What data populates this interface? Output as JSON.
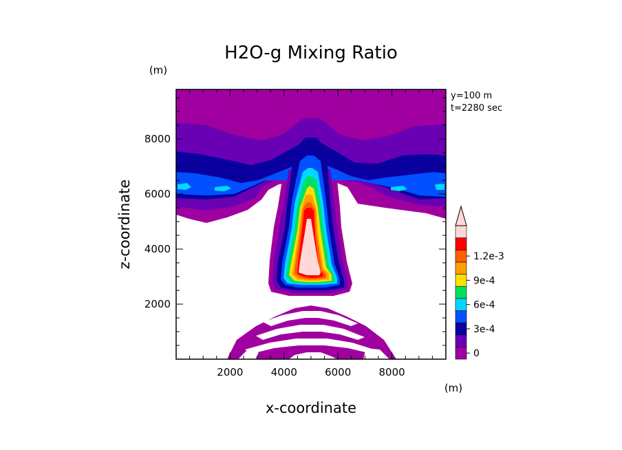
{
  "chart_data": {
    "type": "heatmap",
    "title": "H2O-g Mixing Ratio",
    "xlabel": "x-coordinate",
    "ylabel": "z-coordinate",
    "x_unit": "(m)",
    "y_unit": "(m)",
    "xlim": [
      0,
      10000
    ],
    "ylim": [
      0,
      9800
    ],
    "x_ticks": [
      2000,
      4000,
      6000,
      8000
    ],
    "y_ticks": [
      2000,
      4000,
      6000,
      8000
    ],
    "x_tick_labels": [
      "2000",
      "4000",
      "6000",
      "8000"
    ],
    "y_tick_labels": [
      "2000",
      "4000",
      "6000",
      "8000"
    ],
    "annotations": [
      "y=100 m",
      "t=2280 sec"
    ],
    "colorbar": {
      "labels": [
        "1.2e-3",
        "9e-4",
        "6e-4",
        "3e-4",
        "0"
      ],
      "label_values": [
        0.0012,
        0.0009,
        0.0006,
        0.0003,
        0
      ],
      "levels": [
        0,
        0.00015,
        0.0003,
        0.00045,
        0.0006,
        0.00075,
        0.0009,
        0.00105,
        0.0012
      ],
      "colors": [
        "#a000a0",
        "#6a00b4",
        "#0a00a0",
        "#0050ff",
        "#00d8ff",
        "#00e060",
        "#ffe000",
        "#ffa000",
        "#ff6000",
        "#ff0000",
        "#ffd8d8"
      ],
      "extend_max": true
    },
    "field": {
      "description_levels": "contour level index 0-10",
      "upper_band_level": 0,
      "plume_core_max": 0.0012,
      "plume_top": 7200,
      "plume_base": 2500
    }
  }
}
